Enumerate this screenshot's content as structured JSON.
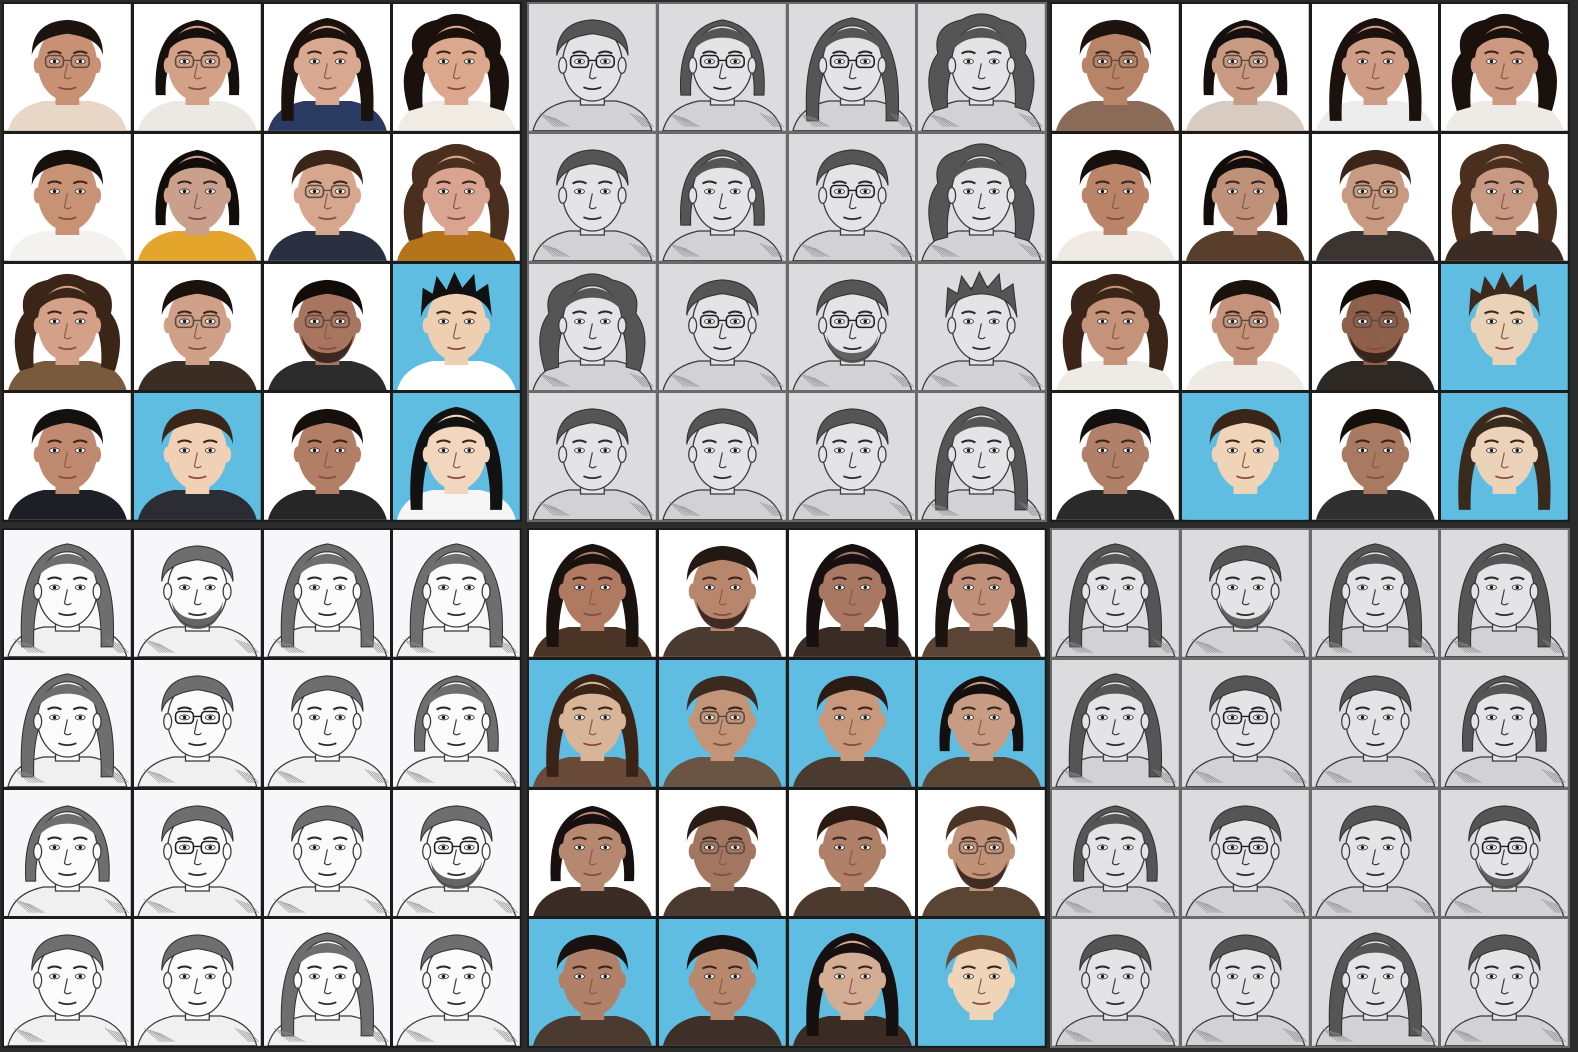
{
  "panels": [
    {
      "id": "panel-photos-input",
      "style": "photo",
      "faces": [
        {
          "bg": "#ffffff",
          "skin": "#c99173",
          "hair": "#1d1410",
          "hairStyle": "short",
          "glasses": true,
          "beard": false,
          "shirt": "#e8d7c6"
        },
        {
          "bg": "#ffffff",
          "skin": "#d3a188",
          "hair": "#15100d",
          "hairStyle": "bob",
          "glasses": true,
          "beard": false,
          "shirt": "#ece8e4"
        },
        {
          "bg": "#ffffff",
          "skin": "#d8a890",
          "hair": "#1b120e",
          "hairStyle": "long",
          "glasses": false,
          "beard": false,
          "shirt": "#2b3a60"
        },
        {
          "bg": "#ffffff",
          "skin": "#dba78d",
          "hair": "#1a110c",
          "hairStyle": "curly",
          "glasses": false,
          "beard": false,
          "shirt": "#f0ece4"
        },
        {
          "bg": "#ffffff",
          "skin": "#c89275",
          "hair": "#17110d",
          "hairStyle": "short",
          "glasses": false,
          "beard": false,
          "shirt": "#f4f2ee"
        },
        {
          "bg": "#ffffff",
          "skin": "#caa08c",
          "hair": "#120d0a",
          "hairStyle": "bob",
          "glasses": false,
          "beard": false,
          "shirt": "#e3a52c"
        },
        {
          "bg": "#ffffff",
          "skin": "#d7a68e",
          "hair": "#3a2518",
          "hairStyle": "short",
          "glasses": true,
          "beard": false,
          "shirt": "#2a3040"
        },
        {
          "bg": "#ffffff",
          "skin": "#d9a590",
          "hair": "#4a2f1e",
          "hairStyle": "curly",
          "glasses": false,
          "beard": false,
          "shirt": "#b3741c"
        },
        {
          "bg": "#ffffff",
          "skin": "#d5a088",
          "hair": "#3b2418",
          "hairStyle": "curly",
          "glasses": false,
          "beard": false,
          "shirt": "#7a5a3c"
        },
        {
          "bg": "#ffffff",
          "skin": "#d1a088",
          "hair": "#1a120d",
          "hairStyle": "short",
          "glasses": true,
          "beard": false,
          "shirt": "#3a2d24"
        },
        {
          "bg": "#ffffff",
          "skin": "#a87560",
          "hair": "#120c09",
          "hairStyle": "short",
          "glasses": true,
          "beard": true,
          "shirt": "#2c2c2c"
        },
        {
          "bg": "#5fbde2",
          "skin": "#efcfb2",
          "hair": "#101010",
          "hairStyle": "spiky",
          "glasses": false,
          "beard": false,
          "shirt": "#ffffff"
        },
        {
          "bg": "#ffffff",
          "skin": "#c08a70",
          "hair": "#141010",
          "hairStyle": "short",
          "glasses": false,
          "beard": false,
          "shirt": "#1e1e26"
        },
        {
          "bg": "#5fbde2",
          "skin": "#f1d1b6",
          "hair": "#3a2618",
          "hairStyle": "short",
          "glasses": false,
          "beard": false,
          "shirt": "#2c2c34"
        },
        {
          "bg": "#ffffff",
          "skin": "#b27e66",
          "hair": "#16100c",
          "hairStyle": "short",
          "glasses": false,
          "beard": false,
          "shirt": "#262626"
        },
        {
          "bg": "#5fbde2",
          "skin": "#f2d6bd",
          "hair": "#121212",
          "hairStyle": "long",
          "glasses": false,
          "beard": false,
          "shirt": "#f6f6f6"
        }
      ]
    },
    {
      "id": "panel-sketches-generated-top",
      "style": "sketch-gray",
      "faces": [
        {
          "hairStyle": "short",
          "glasses": true,
          "beard": false
        },
        {
          "hairStyle": "bob",
          "glasses": true,
          "beard": false
        },
        {
          "hairStyle": "long",
          "glasses": true,
          "beard": false
        },
        {
          "hairStyle": "curly",
          "glasses": false,
          "beard": false
        },
        {
          "hairStyle": "short",
          "glasses": false,
          "beard": false
        },
        {
          "hairStyle": "bob",
          "glasses": false,
          "beard": false
        },
        {
          "hairStyle": "short",
          "glasses": true,
          "beard": false
        },
        {
          "hairStyle": "curly",
          "glasses": false,
          "beard": false
        },
        {
          "hairStyle": "curly",
          "glasses": false,
          "beard": false
        },
        {
          "hairStyle": "short",
          "glasses": true,
          "beard": false
        },
        {
          "hairStyle": "short",
          "glasses": true,
          "beard": true
        },
        {
          "hairStyle": "spiky",
          "glasses": false,
          "beard": false
        },
        {
          "hairStyle": "short",
          "glasses": false,
          "beard": false
        },
        {
          "hairStyle": "short",
          "glasses": false,
          "beard": false
        },
        {
          "hairStyle": "short",
          "glasses": false,
          "beard": false
        },
        {
          "hairStyle": "long",
          "glasses": false,
          "beard": false
        }
      ]
    },
    {
      "id": "panel-photos-reconstructed-top",
      "style": "photo-soft",
      "faces": [
        {
          "bg": "#ffffff",
          "skin": "#b88468",
          "hair": "#1d1410",
          "hairStyle": "short",
          "glasses": true,
          "beard": false,
          "shirt": "#8a6b58"
        },
        {
          "bg": "#ffffff",
          "skin": "#c99a82",
          "hair": "#15100d",
          "hairStyle": "bob",
          "glasses": true,
          "beard": false,
          "shirt": "#d8ccc2"
        },
        {
          "bg": "#ffffff",
          "skin": "#cf9d86",
          "hair": "#1b120e",
          "hairStyle": "long",
          "glasses": false,
          "beard": false,
          "shirt": "#ececec"
        },
        {
          "bg": "#ffffff",
          "skin": "#cc987f",
          "hair": "#1a110c",
          "hairStyle": "curly",
          "glasses": false,
          "beard": false,
          "shirt": "#eeeae6"
        },
        {
          "bg": "#ffffff",
          "skin": "#b98468",
          "hair": "#17110d",
          "hairStyle": "short",
          "glasses": false,
          "beard": false,
          "shirt": "#efeae4"
        },
        {
          "bg": "#ffffff",
          "skin": "#bf9179",
          "hair": "#120d0a",
          "hairStyle": "bob",
          "glasses": false,
          "beard": false,
          "shirt": "#5a3e2c"
        },
        {
          "bg": "#ffffff",
          "skin": "#c99a82",
          "hair": "#3a2518",
          "hairStyle": "short",
          "glasses": true,
          "beard": false,
          "shirt": "#3c3430"
        },
        {
          "bg": "#ffffff",
          "skin": "#c89a84",
          "hair": "#4a2f1e",
          "hairStyle": "curly",
          "glasses": false,
          "beard": false,
          "shirt": "#3c2c24"
        },
        {
          "bg": "#ffffff",
          "skin": "#c4937a",
          "hair": "#3b2418",
          "hairStyle": "curly",
          "glasses": false,
          "beard": false,
          "shirt": "#eeeae6"
        },
        {
          "bg": "#ffffff",
          "skin": "#c4937a",
          "hair": "#1a120d",
          "hairStyle": "short",
          "glasses": true,
          "beard": false,
          "shirt": "#efeae4"
        },
        {
          "bg": "#ffffff",
          "skin": "#8e604c",
          "hair": "#120c09",
          "hairStyle": "short",
          "glasses": true,
          "beard": true,
          "shirt": "#2e2824"
        },
        {
          "bg": "#5fbde2",
          "skin": "#ead2b8",
          "hair": "#3c2a1e",
          "hairStyle": "spiky",
          "glasses": false,
          "beard": false,
          "shirt": "#5fbde2"
        },
        {
          "bg": "#ffffff",
          "skin": "#b08068",
          "hair": "#141010",
          "hairStyle": "short",
          "glasses": false,
          "beard": false,
          "shirt": "#2a2a2a"
        },
        {
          "bg": "#5fbde2",
          "skin": "#f0d4b8",
          "hair": "#3a2618",
          "hairStyle": "short",
          "glasses": false,
          "beard": false,
          "shirt": "#5fbde2"
        },
        {
          "bg": "#ffffff",
          "skin": "#a87a62",
          "hair": "#16100c",
          "hairStyle": "short",
          "glasses": false,
          "beard": false,
          "shirt": "#303030"
        },
        {
          "bg": "#5fbde2",
          "skin": "#ecd2b8",
          "hair": "#3a2a1e",
          "hairStyle": "long",
          "glasses": false,
          "beard": false,
          "shirt": "#5fbde2"
        }
      ]
    },
    {
      "id": "panel-sketches-input",
      "style": "sketch-white",
      "faces": [
        {
          "hairStyle": "long",
          "glasses": false,
          "beard": false
        },
        {
          "hairStyle": "short",
          "glasses": false,
          "beard": true
        },
        {
          "hairStyle": "long",
          "glasses": false,
          "beard": false
        },
        {
          "hairStyle": "long",
          "glasses": false,
          "beard": false
        },
        {
          "hairStyle": "long",
          "glasses": false,
          "beard": false
        },
        {
          "hairStyle": "short",
          "glasses": true,
          "beard": false
        },
        {
          "hairStyle": "short",
          "glasses": false,
          "beard": false
        },
        {
          "hairStyle": "bob",
          "glasses": false,
          "beard": false
        },
        {
          "hairStyle": "bob",
          "glasses": false,
          "beard": false
        },
        {
          "hairStyle": "short",
          "glasses": true,
          "beard": false
        },
        {
          "hairStyle": "short",
          "glasses": false,
          "beard": false
        },
        {
          "hairStyle": "short",
          "glasses": true,
          "beard": true
        },
        {
          "hairStyle": "short",
          "glasses": false,
          "beard": false
        },
        {
          "hairStyle": "short",
          "glasses": false,
          "beard": false
        },
        {
          "hairStyle": "long",
          "glasses": false,
          "beard": false
        },
        {
          "hairStyle": "short",
          "glasses": false,
          "beard": false
        }
      ]
    },
    {
      "id": "panel-photos-generated-bottom",
      "style": "photo-soft",
      "faces": [
        {
          "bg": "#ffffff",
          "skin": "#b07a62",
          "hair": "#1a120e",
          "hairStyle": "long",
          "glasses": false,
          "beard": false,
          "shirt": "#4a3426"
        },
        {
          "bg": "#ffffff",
          "skin": "#b8866c",
          "hair": "#241814",
          "hairStyle": "short",
          "glasses": false,
          "beard": true,
          "shirt": "#4a3a30"
        },
        {
          "bg": "#ffffff",
          "skin": "#a87862",
          "hair": "#181010",
          "hairStyle": "long",
          "glasses": false,
          "beard": false,
          "shirt": "#3a2c24"
        },
        {
          "bg": "#ffffff",
          "skin": "#c0907a",
          "hair": "#1c1410",
          "hairStyle": "long",
          "glasses": false,
          "beard": false,
          "shirt": "#5a4436"
        },
        {
          "bg": "#5fbde2",
          "skin": "#d8b498",
          "hair": "#3a2418",
          "hairStyle": "long",
          "glasses": false,
          "beard": false,
          "shirt": "#6a4a38"
        },
        {
          "bg": "#5fbde2",
          "skin": "#c29478",
          "hair": "#3a2a20",
          "hairStyle": "short",
          "glasses": true,
          "beard": false,
          "shirt": "#6a5444"
        },
        {
          "bg": "#5fbde2",
          "skin": "#c8987c",
          "hair": "#2a1c14",
          "hairStyle": "short",
          "glasses": false,
          "beard": false,
          "shirt": "#4a3a30"
        },
        {
          "bg": "#5fbde2",
          "skin": "#c89c84",
          "hair": "#141010",
          "hairStyle": "bob",
          "glasses": false,
          "beard": false,
          "shirt": "#5a4434"
        },
        {
          "bg": "#ffffff",
          "skin": "#b68870",
          "hair": "#181010",
          "hairStyle": "bob",
          "glasses": false,
          "beard": false,
          "shirt": "#3a2c24"
        },
        {
          "bg": "#ffffff",
          "skin": "#a27660",
          "hair": "#2a1c14",
          "hairStyle": "short",
          "glasses": true,
          "beard": false,
          "shirt": "#4a3a30"
        },
        {
          "bg": "#ffffff",
          "skin": "#b08068",
          "hair": "#2a1a12",
          "hairStyle": "short",
          "glasses": false,
          "beard": false,
          "shirt": "#4c3a2e"
        },
        {
          "bg": "#ffffff",
          "skin": "#c09278",
          "hair": "#4a3426",
          "hairStyle": "short",
          "glasses": true,
          "beard": true,
          "shirt": "#5a4434"
        },
        {
          "bg": "#5fbde2",
          "skin": "#b08068",
          "hair": "#1a1210",
          "hairStyle": "short",
          "glasses": false,
          "beard": false,
          "shirt": "#4a3a30"
        },
        {
          "bg": "#5fbde2",
          "skin": "#b8886e",
          "hair": "#1a1210",
          "hairStyle": "short",
          "glasses": false,
          "beard": false,
          "shirt": "#3e3028"
        },
        {
          "bg": "#5fbde2",
          "skin": "#d4ae94",
          "hair": "#161010",
          "hairStyle": "long",
          "glasses": false,
          "beard": false,
          "shirt": "#3a2c24"
        },
        {
          "bg": "#5fbde2",
          "skin": "#f0d4b8",
          "hair": "#6a4a30",
          "hairStyle": "short",
          "glasses": false,
          "beard": false,
          "shirt": "#5fbde2"
        }
      ]
    },
    {
      "id": "panel-sketches-reconstructed-bottom",
      "style": "sketch-gray",
      "faces": [
        {
          "hairStyle": "long",
          "glasses": false,
          "beard": false
        },
        {
          "hairStyle": "short",
          "glasses": false,
          "beard": true
        },
        {
          "hairStyle": "long",
          "glasses": false,
          "beard": false
        },
        {
          "hairStyle": "long",
          "glasses": false,
          "beard": false
        },
        {
          "hairStyle": "long",
          "glasses": false,
          "beard": false
        },
        {
          "hairStyle": "short",
          "glasses": true,
          "beard": false
        },
        {
          "hairStyle": "short",
          "glasses": false,
          "beard": false
        },
        {
          "hairStyle": "bob",
          "glasses": false,
          "beard": false
        },
        {
          "hairStyle": "bob",
          "glasses": false,
          "beard": false
        },
        {
          "hairStyle": "short",
          "glasses": true,
          "beard": false
        },
        {
          "hairStyle": "short",
          "glasses": false,
          "beard": false
        },
        {
          "hairStyle": "short",
          "glasses": true,
          "beard": true
        },
        {
          "hairStyle": "short",
          "glasses": false,
          "beard": false
        },
        {
          "hairStyle": "short",
          "glasses": false,
          "beard": false
        },
        {
          "hairStyle": "long",
          "glasses": false,
          "beard": false
        },
        {
          "hairStyle": "short",
          "glasses": false,
          "beard": false
        }
      ]
    }
  ]
}
